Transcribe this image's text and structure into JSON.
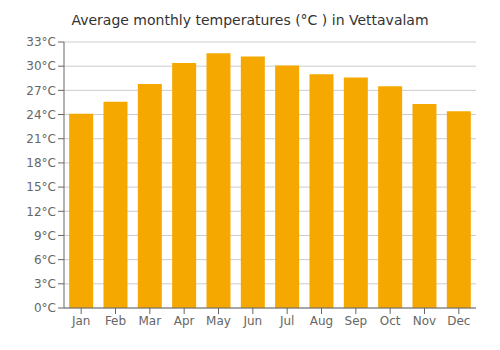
{
  "chart_data": {
    "type": "bar",
    "title": "Average monthly temperatures (°C ) in Vettavalam",
    "categories": [
      "Jan",
      "Feb",
      "Mar",
      "Apr",
      "May",
      "Jun",
      "Jul",
      "Aug",
      "Sep",
      "Oct",
      "Nov",
      "Dec"
    ],
    "values": [
      24.1,
      25.6,
      27.8,
      30.4,
      31.6,
      31.2,
      30.1,
      29.0,
      28.6,
      27.5,
      25.3,
      24.4
    ],
    "color": "#F5A800",
    "ylim": [
      0,
      33
    ],
    "yticks": [
      {
        "value": 0,
        "label": "0°C"
      },
      {
        "value": 3,
        "label": "3°C"
      },
      {
        "value": 6,
        "label": "6°C"
      },
      {
        "value": 9,
        "label": "9°C"
      },
      {
        "value": 12,
        "label": "12°C"
      },
      {
        "value": 15,
        "label": "15°C"
      },
      {
        "value": 18,
        "label": "18°C"
      },
      {
        "value": 21,
        "label": "21°C"
      },
      {
        "value": 24,
        "label": "24°C"
      },
      {
        "value": 27,
        "label": "27°C"
      },
      {
        "value": 30,
        "label": "30°C"
      },
      {
        "value": 33,
        "label": "33°C"
      }
    ],
    "grid": true
  }
}
